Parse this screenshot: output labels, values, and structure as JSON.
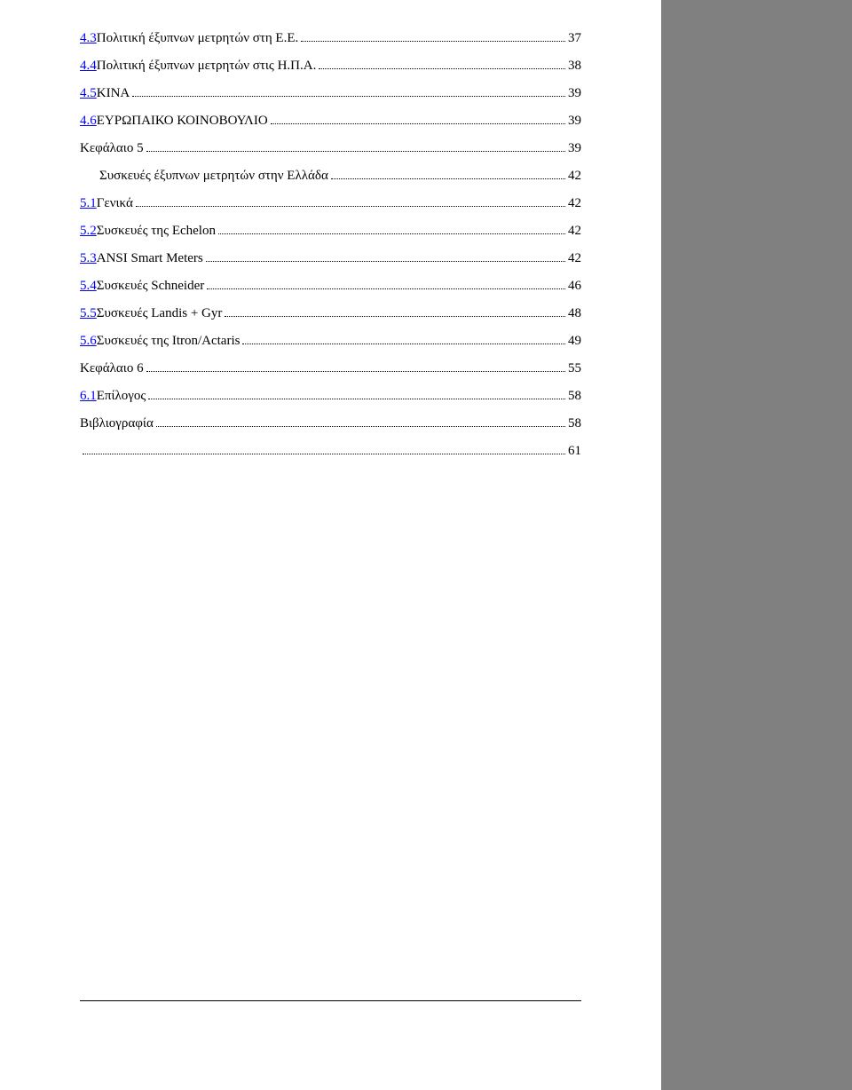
{
  "toc": {
    "entries": [
      {
        "num": "4.3",
        "text": "Πολιτική έξυπνων μετρητών στη Ε.Ε.",
        "page": "37",
        "link": true
      },
      {
        "num": "4.4",
        "text": "Πολιτική έξυπνων μετρητών στις Η.Π.Α.",
        "page": "38",
        "link": true
      },
      {
        "num": "4.5",
        "text": "ΚΙΝΑ",
        "page": "39",
        "link": true
      },
      {
        "num": "4.6",
        "text": "ΕΥΡΩΠΑΙΚΟ ΚΟΙΝΟΒΟΥΛΙΟ",
        "page": "39",
        "link": true
      },
      {
        "num": "",
        "text": "Κεφάλαιο 5",
        "page": "39",
        "link": false
      },
      {
        "num": "",
        "text": "Συσκευές έξυπνων μετρητών στην Ελλάδα",
        "page": "42",
        "link": false,
        "indent": true
      },
      {
        "num": "5.1",
        "text": "Γενικά",
        "page": "42",
        "link": true
      },
      {
        "num": "5.2",
        "text": "Συσκευές της Echelon",
        "page": "42",
        "link": true
      },
      {
        "num": "5.3",
        "text": "ANSI Smart Meters",
        "page": "42",
        "link": true
      },
      {
        "num": "5.4",
        "text": "Συσκευές Schneider",
        "page": "46",
        "link": true
      },
      {
        "num": "5.5",
        "text": "Συσκευές Landis + Gyr",
        "page": "48",
        "link": true
      },
      {
        "num": "5.6",
        "text": "Συσκευές της Itron/Actaris",
        "page": "49",
        "link": true
      },
      {
        "num": "",
        "text": "Κεφάλαιο 6",
        "page": "55",
        "link": false
      },
      {
        "num": "6.1",
        "text": "Επίλογος",
        "page": "58",
        "link": true
      },
      {
        "num": "",
        "text": "Βιβλιογραφία",
        "page": "58",
        "link": false,
        "extraTop": true
      },
      {
        "num": "",
        "text": "",
        "page": "61",
        "link": false,
        "hidden": true
      }
    ]
  }
}
